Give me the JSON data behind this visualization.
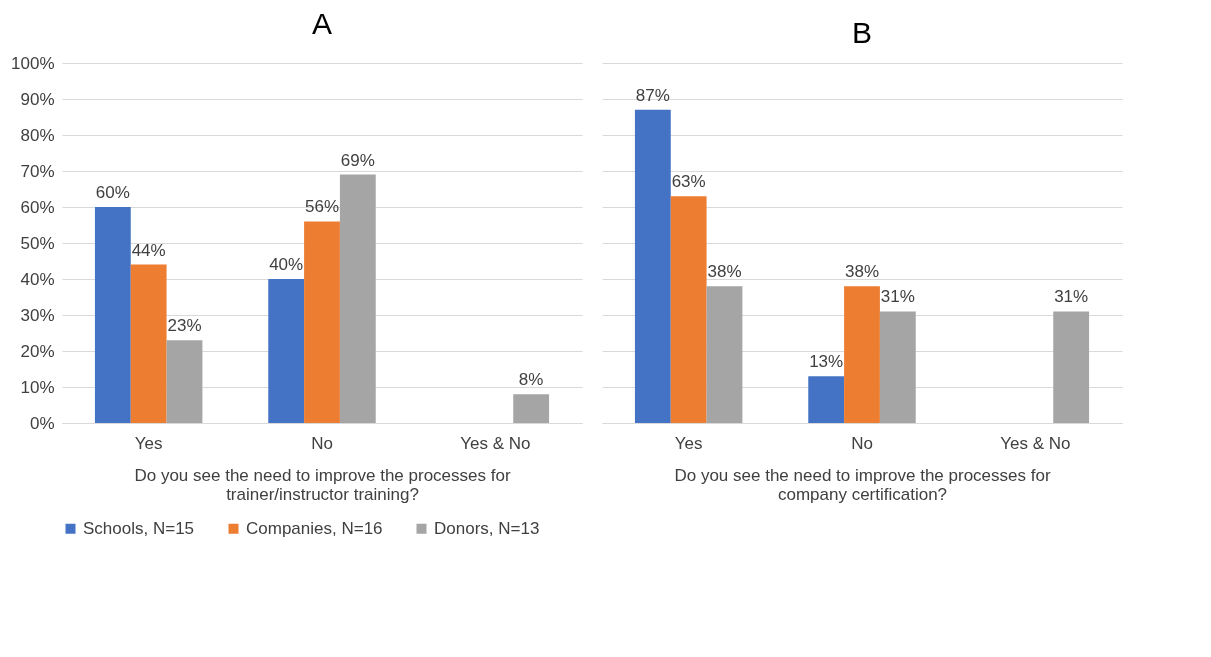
{
  "chart_data": [
    {
      "type": "bar",
      "title": "A",
      "xlabel": "Do you see the need to improve the processes for trainer/instructor training?",
      "categories": [
        "Yes",
        "No",
        "Yes & No"
      ],
      "series": [
        {
          "name": "Schools, N=15",
          "color": "#4472c4",
          "values": [
            60,
            40,
            null
          ],
          "value_labels": [
            "60%",
            "40%",
            null
          ]
        },
        {
          "name": "Companies, N=16",
          "color": "#ed7d31",
          "values": [
            44,
            56,
            null
          ],
          "value_labels": [
            "44%",
            "56%",
            null
          ]
        },
        {
          "name": "Donors, N=13",
          "color": "#a5a5a5",
          "values": [
            23,
            69,
            8
          ],
          "value_labels": [
            "23%",
            "69%",
            "8%"
          ]
        }
      ],
      "ylim": [
        0,
        100
      ],
      "yticks": [
        {
          "value": 0,
          "label": "0%"
        },
        {
          "value": 10,
          "label": "10%"
        },
        {
          "value": 20,
          "label": "20%"
        },
        {
          "value": 30,
          "label": "30%"
        },
        {
          "value": 40,
          "label": "40%"
        },
        {
          "value": 50,
          "label": "50%"
        },
        {
          "value": 60,
          "label": "60%"
        },
        {
          "value": 70,
          "label": "70%"
        },
        {
          "value": 80,
          "label": "80%"
        },
        {
          "value": 90,
          "label": "90%"
        },
        {
          "value": 100,
          "label": "100%"
        }
      ],
      "grid": "y",
      "legend": "bottom"
    },
    {
      "type": "bar",
      "title": "B",
      "xlabel": "Do you see the need to improve the processes for company certification?",
      "categories": [
        "Yes",
        "No",
        "Yes & No"
      ],
      "series": [
        {
          "name": "Schools, N=15",
          "color": "#4472c4",
          "values": [
            87,
            13,
            null
          ],
          "value_labels": [
            "87%",
            "13%",
            null
          ]
        },
        {
          "name": "Companies, N=16",
          "color": "#ed7d31",
          "values": [
            63,
            38,
            null
          ],
          "value_labels": [
            "63%",
            "38%",
            null
          ]
        },
        {
          "name": "Donors, N=13",
          "color": "#a5a5a5",
          "values": [
            38,
            31,
            31
          ],
          "value_labels": [
            "38%",
            "31%",
            "31%"
          ]
        }
      ],
      "ylim": [
        0,
        100
      ],
      "yticks": [
        {
          "value": 0,
          "label": "0%"
        },
        {
          "value": 10,
          "label": "10%"
        },
        {
          "value": 20,
          "label": "20%"
        },
        {
          "value": 30,
          "label": "30%"
        },
        {
          "value": 40,
          "label": "40%"
        },
        {
          "value": 50,
          "label": "50%"
        },
        {
          "value": 60,
          "label": "60%"
        },
        {
          "value": 70,
          "label": "70%"
        },
        {
          "value": 80,
          "label": "80%"
        },
        {
          "value": 90,
          "label": "90%"
        },
        {
          "value": 100,
          "label": "100%"
        }
      ],
      "grid": "y",
      "legend": "bottom",
      "tick_labels": "x"
    }
  ]
}
